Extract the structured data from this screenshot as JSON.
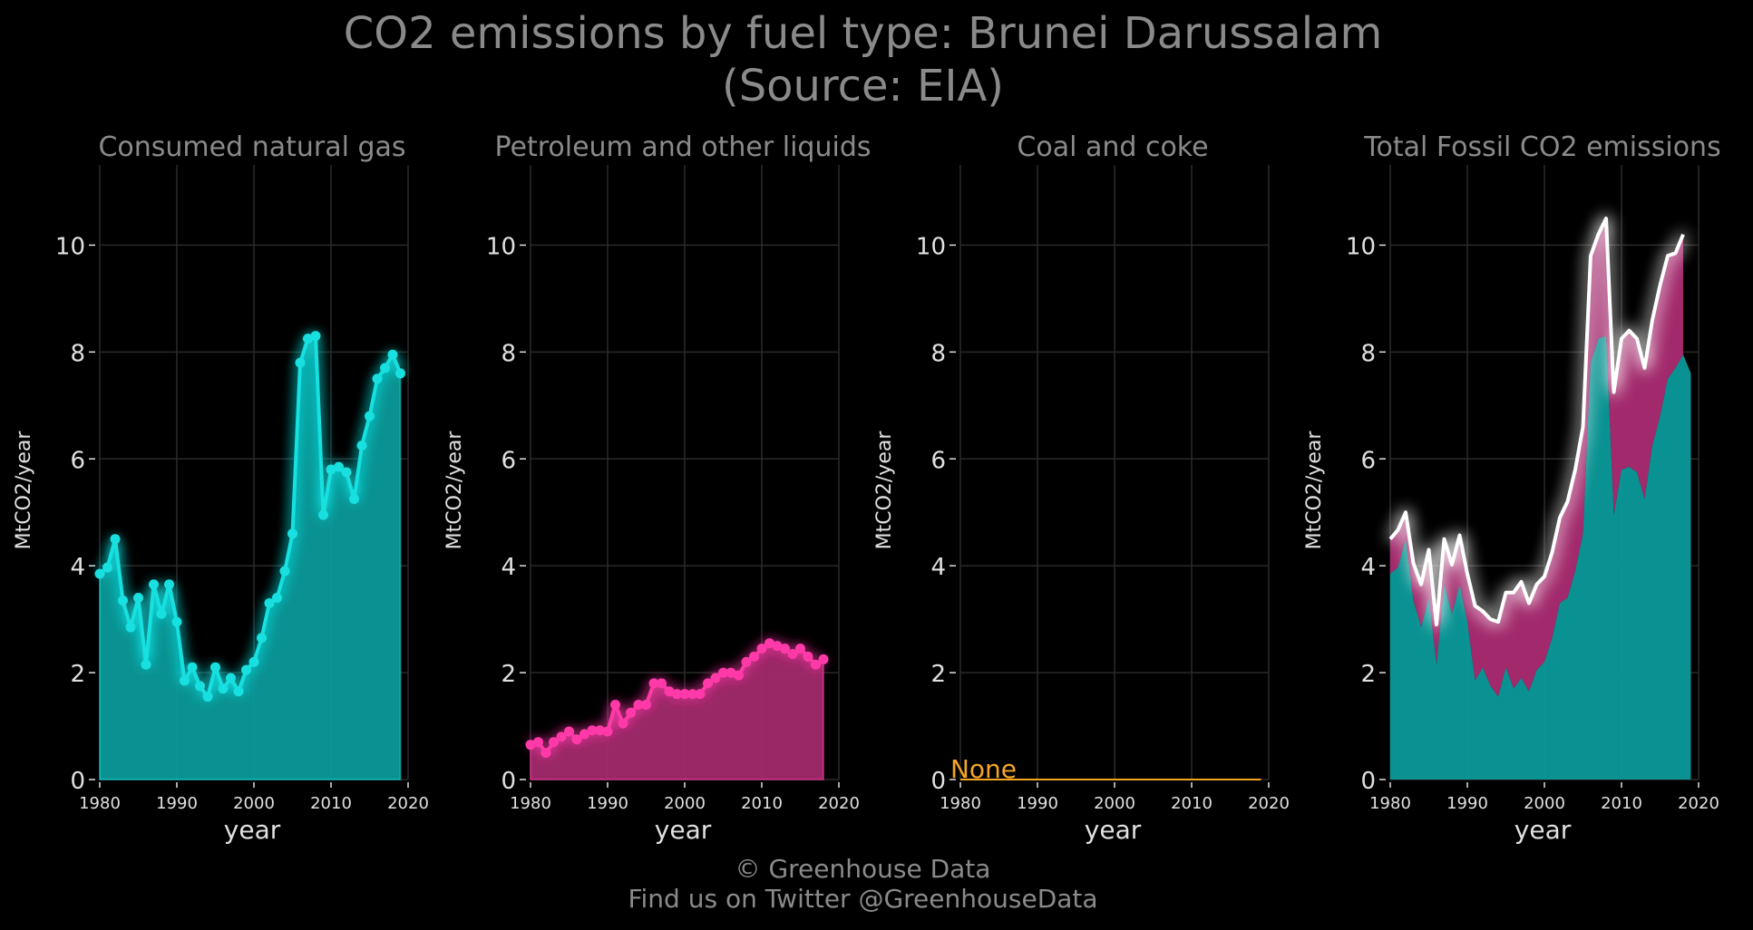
{
  "title": {
    "line1": "CO2 emissions by fuel type: Brunei Darussalam",
    "line2": "(Source: EIA)"
  },
  "footer": {
    "line1": "© Greenhouse Data",
    "line2": "Find us on Twitter @GreenhouseData"
  },
  "colors": {
    "gas": "#19e0e0",
    "gas_fill": "#0b9a9a",
    "petroleum": "#ff3aa8",
    "petroleum_fill": "#a22a6c",
    "coal": "#f5a623",
    "total_line": "#ffffff",
    "grid": "#2a2a2a",
    "text": "#8a8a8a",
    "tick_text": "#e0e0e0"
  },
  "chart_data": [
    {
      "type": "area",
      "title": "Consumed natural gas",
      "xlabel": "year",
      "ylabel": "MtCO2/year",
      "xlim": [
        1980,
        2020
      ],
      "ylim": [
        0,
        11.5
      ],
      "xticks": [
        1980,
        1990,
        2000,
        2010,
        2020
      ],
      "yticks": [
        0,
        2,
        4,
        6,
        8,
        10
      ],
      "grid": true,
      "series": [
        {
          "x": [
            1980,
            1981,
            1982,
            1983,
            1984,
            1985,
            1986,
            1987,
            1988,
            1989,
            1990,
            1991,
            1992,
            1993,
            1994,
            1995,
            1996,
            1997,
            1998,
            1999,
            2000,
            2001,
            2002,
            2003,
            2004,
            2005,
            2006,
            2007,
            2008,
            2009,
            2010,
            2011,
            2012,
            2013,
            2014,
            2015,
            2016,
            2017,
            2018,
            2019
          ],
          "values": [
            3.85,
            3.97,
            4.5,
            3.35,
            2.85,
            3.4,
            2.15,
            3.65,
            3.1,
            3.65,
            2.95,
            1.85,
            2.1,
            1.75,
            1.55,
            2.1,
            1.7,
            1.9,
            1.65,
            2.05,
            2.2,
            2.65,
            3.3,
            3.4,
            3.9,
            4.6,
            7.8,
            8.25,
            8.3,
            4.95,
            5.8,
            5.85,
            5.75,
            5.25,
            6.25,
            6.8,
            7.5,
            7.7,
            7.95,
            7.6
          ]
        }
      ]
    },
    {
      "type": "area",
      "title": "Petroleum and other liquids",
      "xlabel": "year",
      "ylabel": "MtCO2/year",
      "xlim": [
        1980,
        2020
      ],
      "ylim": [
        0,
        11.5
      ],
      "xticks": [
        1980,
        1990,
        2000,
        2010,
        2020
      ],
      "yticks": [
        0,
        2,
        4,
        6,
        8,
        10
      ],
      "grid": true,
      "series": [
        {
          "x": [
            1980,
            1981,
            1982,
            1983,
            1984,
            1985,
            1986,
            1987,
            1988,
            1989,
            1990,
            1991,
            1992,
            1993,
            1994,
            1995,
            1996,
            1997,
            1998,
            1999,
            2000,
            2001,
            2002,
            2003,
            2004,
            2005,
            2006,
            2007,
            2008,
            2009,
            2010,
            2011,
            2012,
            2013,
            2014,
            2015,
            2016,
            2017,
            2018
          ],
          "values": [
            0.65,
            0.7,
            0.5,
            0.7,
            0.8,
            0.9,
            0.75,
            0.85,
            0.92,
            0.92,
            0.9,
            1.4,
            1.05,
            1.25,
            1.4,
            1.4,
            1.8,
            1.8,
            1.65,
            1.6,
            1.6,
            1.6,
            1.6,
            1.8,
            1.9,
            2.0,
            2.0,
            1.95,
            2.2,
            2.3,
            2.45,
            2.55,
            2.5,
            2.45,
            2.35,
            2.45,
            2.3,
            2.15,
            2.25
          ]
        }
      ]
    },
    {
      "type": "line",
      "title": "Coal and coke",
      "xlabel": "year",
      "ylabel": "MtCO2/year",
      "xlim": [
        1980,
        2020
      ],
      "ylim": [
        0,
        11.5
      ],
      "xticks": [
        1980,
        1990,
        2000,
        2010,
        2020
      ],
      "yticks": [
        0,
        2,
        4,
        6,
        8,
        10
      ],
      "grid": true,
      "annotation": "None",
      "series": [
        {
          "x": [
            1980,
            2019
          ],
          "values": [
            0,
            0
          ]
        }
      ]
    },
    {
      "type": "area",
      "title": "Total Fossil CO2 emissions",
      "xlabel": "year",
      "ylabel": "MtCO2/year",
      "xlim": [
        1980,
        2020
      ],
      "ylim": [
        0,
        11.5
      ],
      "xticks": [
        1980,
        1990,
        2000,
        2010,
        2020
      ],
      "yticks": [
        0,
        2,
        4,
        6,
        8,
        10
      ],
      "grid": true,
      "stacked": [
        "Consumed natural gas",
        "Petroleum and other liquids"
      ],
      "total_line": {
        "x": [
          1980,
          1981,
          1982,
          1983,
          1984,
          1985,
          1986,
          1987,
          1988,
          1989,
          1990,
          1991,
          1992,
          1993,
          1994,
          1995,
          1996,
          1997,
          1998,
          1999,
          2000,
          2001,
          2002,
          2003,
          2004,
          2005,
          2006,
          2007,
          2008,
          2009,
          2010,
          2011,
          2012,
          2013,
          2014,
          2015,
          2016,
          2017,
          2018
        ],
        "values": [
          4.5,
          4.67,
          5.0,
          4.05,
          3.65,
          4.3,
          2.9,
          4.5,
          4.02,
          4.57,
          3.85,
          3.25,
          3.15,
          3.0,
          2.95,
          3.5,
          3.5,
          3.7,
          3.3,
          3.65,
          3.8,
          4.25,
          4.9,
          5.2,
          5.8,
          6.6,
          9.8,
          10.2,
          10.5,
          7.25,
          8.25,
          8.4,
          8.25,
          7.7,
          8.6,
          9.25,
          9.8,
          9.85,
          10.2
        ]
      }
    }
  ]
}
